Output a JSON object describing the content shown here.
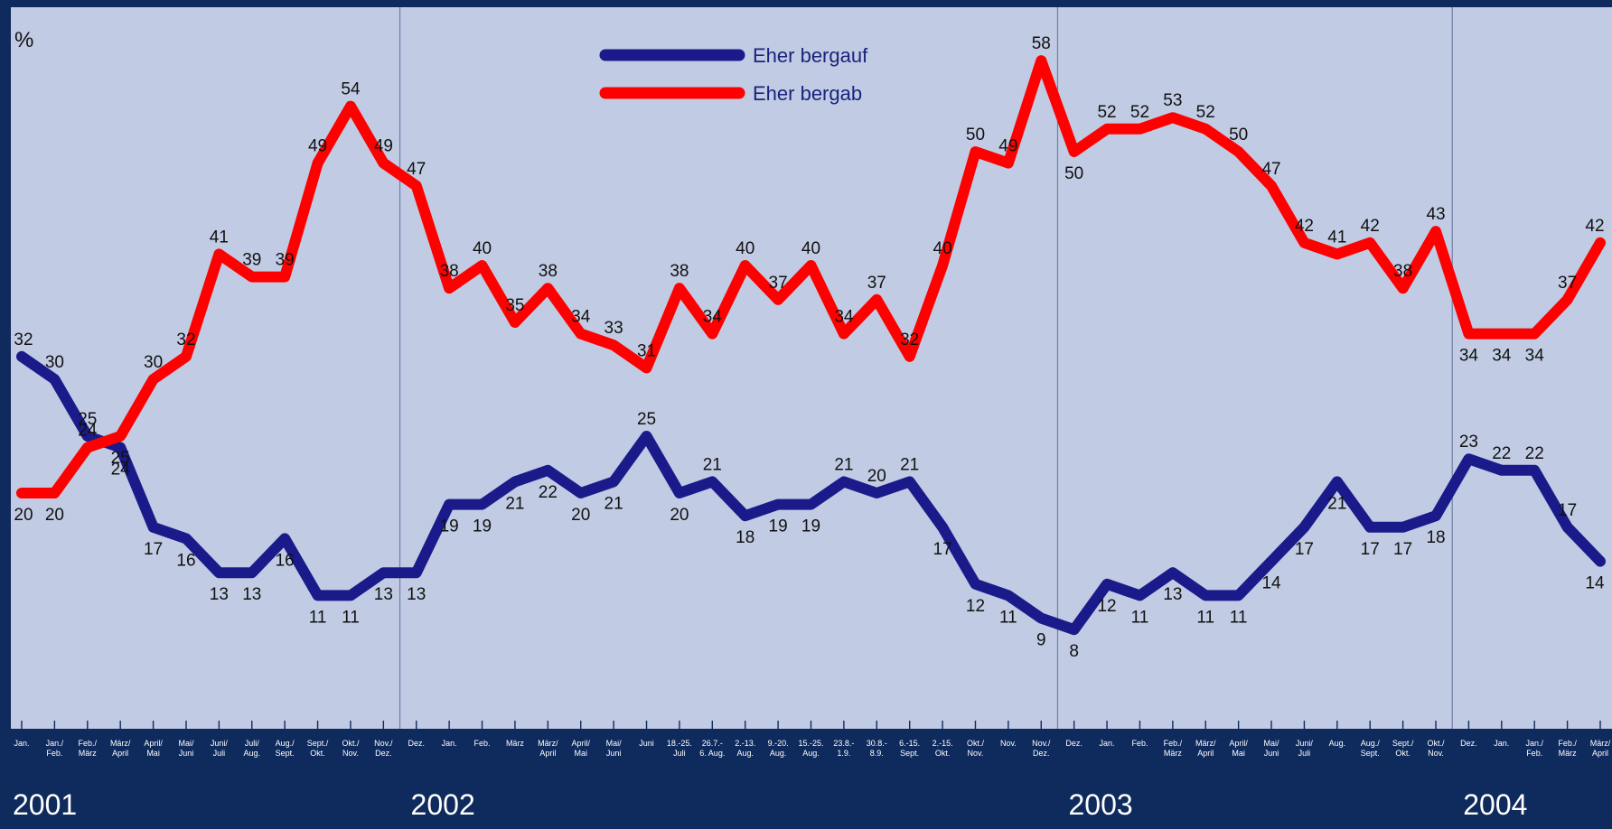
{
  "chart_data": {
    "type": "line",
    "ylabel": "%",
    "ylim": [
      0,
      65
    ],
    "grid": false,
    "legend_position": "top-center",
    "colors": {
      "up": "#1a1a8a",
      "down": "#ff0000",
      "plot_bg": "#c1cbe3",
      "frame": "#0f2a5c"
    },
    "year_labels": [
      "2001",
      "2002",
      "2003",
      "2004"
    ],
    "year_start_indices": [
      0,
      12,
      32,
      44
    ],
    "x": [
      [
        "Jan."
      ],
      [
        "Jan./",
        "Feb."
      ],
      [
        "Feb./",
        "März"
      ],
      [
        "März/",
        "April"
      ],
      [
        "April/",
        "Mai"
      ],
      [
        "Mai/",
        "Juni"
      ],
      [
        "Juni/",
        "Juli"
      ],
      [
        "Juli/",
        "Aug."
      ],
      [
        "Aug./",
        "Sept."
      ],
      [
        "Sept./",
        "Okt."
      ],
      [
        "Okt./",
        "Nov."
      ],
      [
        "Nov./",
        "Dez."
      ],
      [
        "Dez."
      ],
      [
        "Jan."
      ],
      [
        "Feb."
      ],
      [
        "März"
      ],
      [
        "März/",
        "April"
      ],
      [
        "April/",
        "Mai"
      ],
      [
        "Mai/",
        "Juni"
      ],
      [
        "Juni"
      ],
      [
        "18.-25.",
        "Juli"
      ],
      [
        "26.7.-",
        "6. Aug."
      ],
      [
        "2.-13.",
        "Aug."
      ],
      [
        "9.-20.",
        "Aug."
      ],
      [
        "15.-25.",
        "Aug."
      ],
      [
        "23.8.-",
        "1.9."
      ],
      [
        "30.8.-",
        "8.9."
      ],
      [
        "6.-15.",
        "Sept."
      ],
      [
        "2.-15.",
        "Okt."
      ],
      [
        "Okt./",
        "Nov."
      ],
      [
        "Nov."
      ],
      [
        "Nov./",
        "Dez."
      ],
      [
        "Dez."
      ],
      [
        "Jan."
      ],
      [
        "Feb."
      ],
      [
        "Feb./",
        "März"
      ],
      [
        "März/",
        "April"
      ],
      [
        "April/",
        "Mai"
      ],
      [
        "Mai/",
        "Juni"
      ],
      [
        "Juni/",
        "Juli"
      ],
      [
        "Aug."
      ],
      [
        "Aug./",
        "Sept."
      ],
      [
        "Sept./",
        "Okt."
      ],
      [
        "Okt./",
        "Nov."
      ],
      [
        "Dez."
      ],
      [
        "Jan."
      ],
      [
        "Jan./",
        "Feb."
      ],
      [
        "Feb./",
        "März"
      ],
      [
        "März/",
        "April"
      ]
    ],
    "series": [
      {
        "name": "Eher bergauf",
        "color": "#1a1a8a",
        "values": [
          32,
          30,
          25,
          24,
          17,
          16,
          13,
          13,
          16,
          11,
          11,
          13,
          13,
          19,
          19,
          21,
          22,
          20,
          21,
          25,
          20,
          21,
          18,
          19,
          19,
          21,
          20,
          21,
          17,
          12,
          11,
          9,
          8,
          12,
          11,
          13,
          11,
          11,
          14,
          17,
          21,
          17,
          17,
          18,
          23,
          22,
          22,
          17,
          14
        ],
        "label_below": [
          false,
          false,
          false,
          true,
          true,
          true,
          true,
          true,
          true,
          true,
          true,
          true,
          true,
          true,
          true,
          true,
          true,
          true,
          true,
          false,
          true,
          false,
          true,
          true,
          true,
          false,
          false,
          false,
          true,
          true,
          true,
          true,
          true,
          true,
          true,
          true,
          true,
          true,
          true,
          true,
          true,
          true,
          true,
          true,
          false,
          false,
          false,
          false,
          true
        ]
      },
      {
        "name": "Eher bergab",
        "color": "#ff0000",
        "values": [
          20,
          20,
          24,
          25,
          30,
          32,
          41,
          39,
          39,
          49,
          54,
          49,
          47,
          38,
          40,
          35,
          38,
          34,
          33,
          31,
          38,
          34,
          40,
          37,
          40,
          34,
          37,
          32,
          40,
          50,
          49,
          58,
          50,
          52,
          52,
          53,
          52,
          50,
          47,
          42,
          41,
          42,
          38,
          43,
          34,
          34,
          34,
          37,
          42
        ],
        "label_below": [
          true,
          true,
          false,
          true,
          false,
          false,
          false,
          false,
          false,
          false,
          false,
          false,
          false,
          false,
          false,
          false,
          false,
          false,
          false,
          false,
          false,
          false,
          false,
          false,
          false,
          false,
          false,
          false,
          false,
          false,
          false,
          false,
          true,
          false,
          false,
          false,
          false,
          false,
          false,
          false,
          false,
          false,
          false,
          false,
          true,
          true,
          true,
          false,
          false
        ]
      }
    ]
  }
}
